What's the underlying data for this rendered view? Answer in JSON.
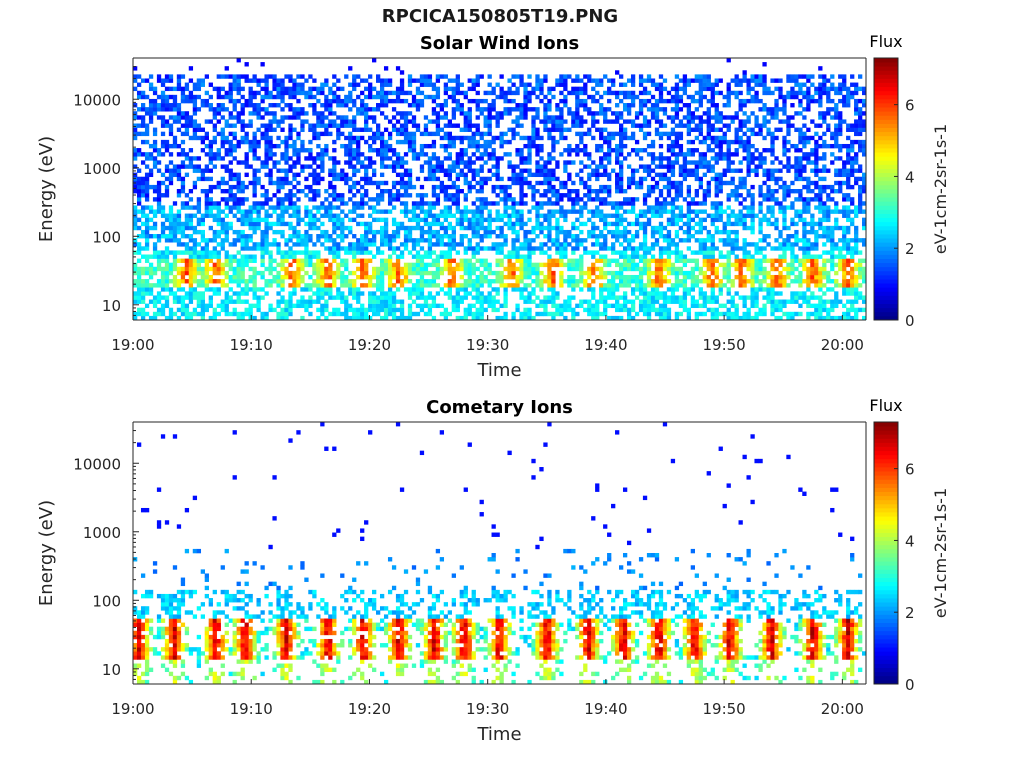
{
  "figure": {
    "title": "RPCICA150805T19.PNG"
  },
  "chart_data": [
    {
      "type": "heatmap",
      "title": "Solar Wind Ions",
      "xlabel": "Time",
      "ylabel": "Energy (eV)",
      "x_ticks": [
        "19:00",
        "19:10",
        "19:20",
        "19:30",
        "19:40",
        "19:50",
        "20:00"
      ],
      "x_range": [
        "19:00",
        "20:02"
      ],
      "y_ticks": [
        10,
        100,
        1000,
        10000
      ],
      "y_range": [
        6,
        40000
      ],
      "y_scale": "log",
      "colorbar": {
        "title": "Flux",
        "label": "eV-1cm-2sr-1s-1",
        "ticks": [
          0,
          2,
          4,
          6
        ],
        "range": [
          0,
          7.3
        ]
      },
      "intensity_bursts_min": [
        4.5,
        7.0,
        13.5,
        16.5,
        19.5,
        22.5,
        27.0,
        32.0,
        35.5,
        39.0,
        44.5,
        49.0,
        51.5,
        54.5,
        57.5,
        60.5
      ],
      "notes": "Broad diffuse flux (~1-3) across 10-20000 eV; brighter 4-6 band near 20-40 eV"
    },
    {
      "type": "heatmap",
      "title": "Cometary Ions",
      "xlabel": "Time",
      "ylabel": "Energy (eV)",
      "x_ticks": [
        "19:00",
        "19:10",
        "19:20",
        "19:30",
        "19:40",
        "19:50",
        "20:00"
      ],
      "x_range": [
        "19:00",
        "20:02"
      ],
      "y_ticks": [
        10,
        100,
        1000,
        10000
      ],
      "y_range": [
        6,
        40000
      ],
      "y_scale": "log",
      "colorbar": {
        "title": "Flux",
        "label": "eV-1cm-2sr-1s-1",
        "ticks": [
          0,
          2,
          4,
          6
        ],
        "range": [
          0,
          7.3
        ]
      },
      "intensity_bursts_min": [
        0.5,
        3.5,
        7.0,
        9.5,
        13.0,
        16.5,
        19.5,
        22.5,
        25.5,
        28.0,
        31.0,
        35.0,
        38.5,
        41.5,
        44.5,
        47.5,
        50.5,
        54.0,
        57.5,
        60.5
      ],
      "notes": "Intense 5-7 flux bursts near 15-45 eV, lower flux 2-3 near 10 and 100 eV, sparse points above 1000 eV"
    }
  ]
}
